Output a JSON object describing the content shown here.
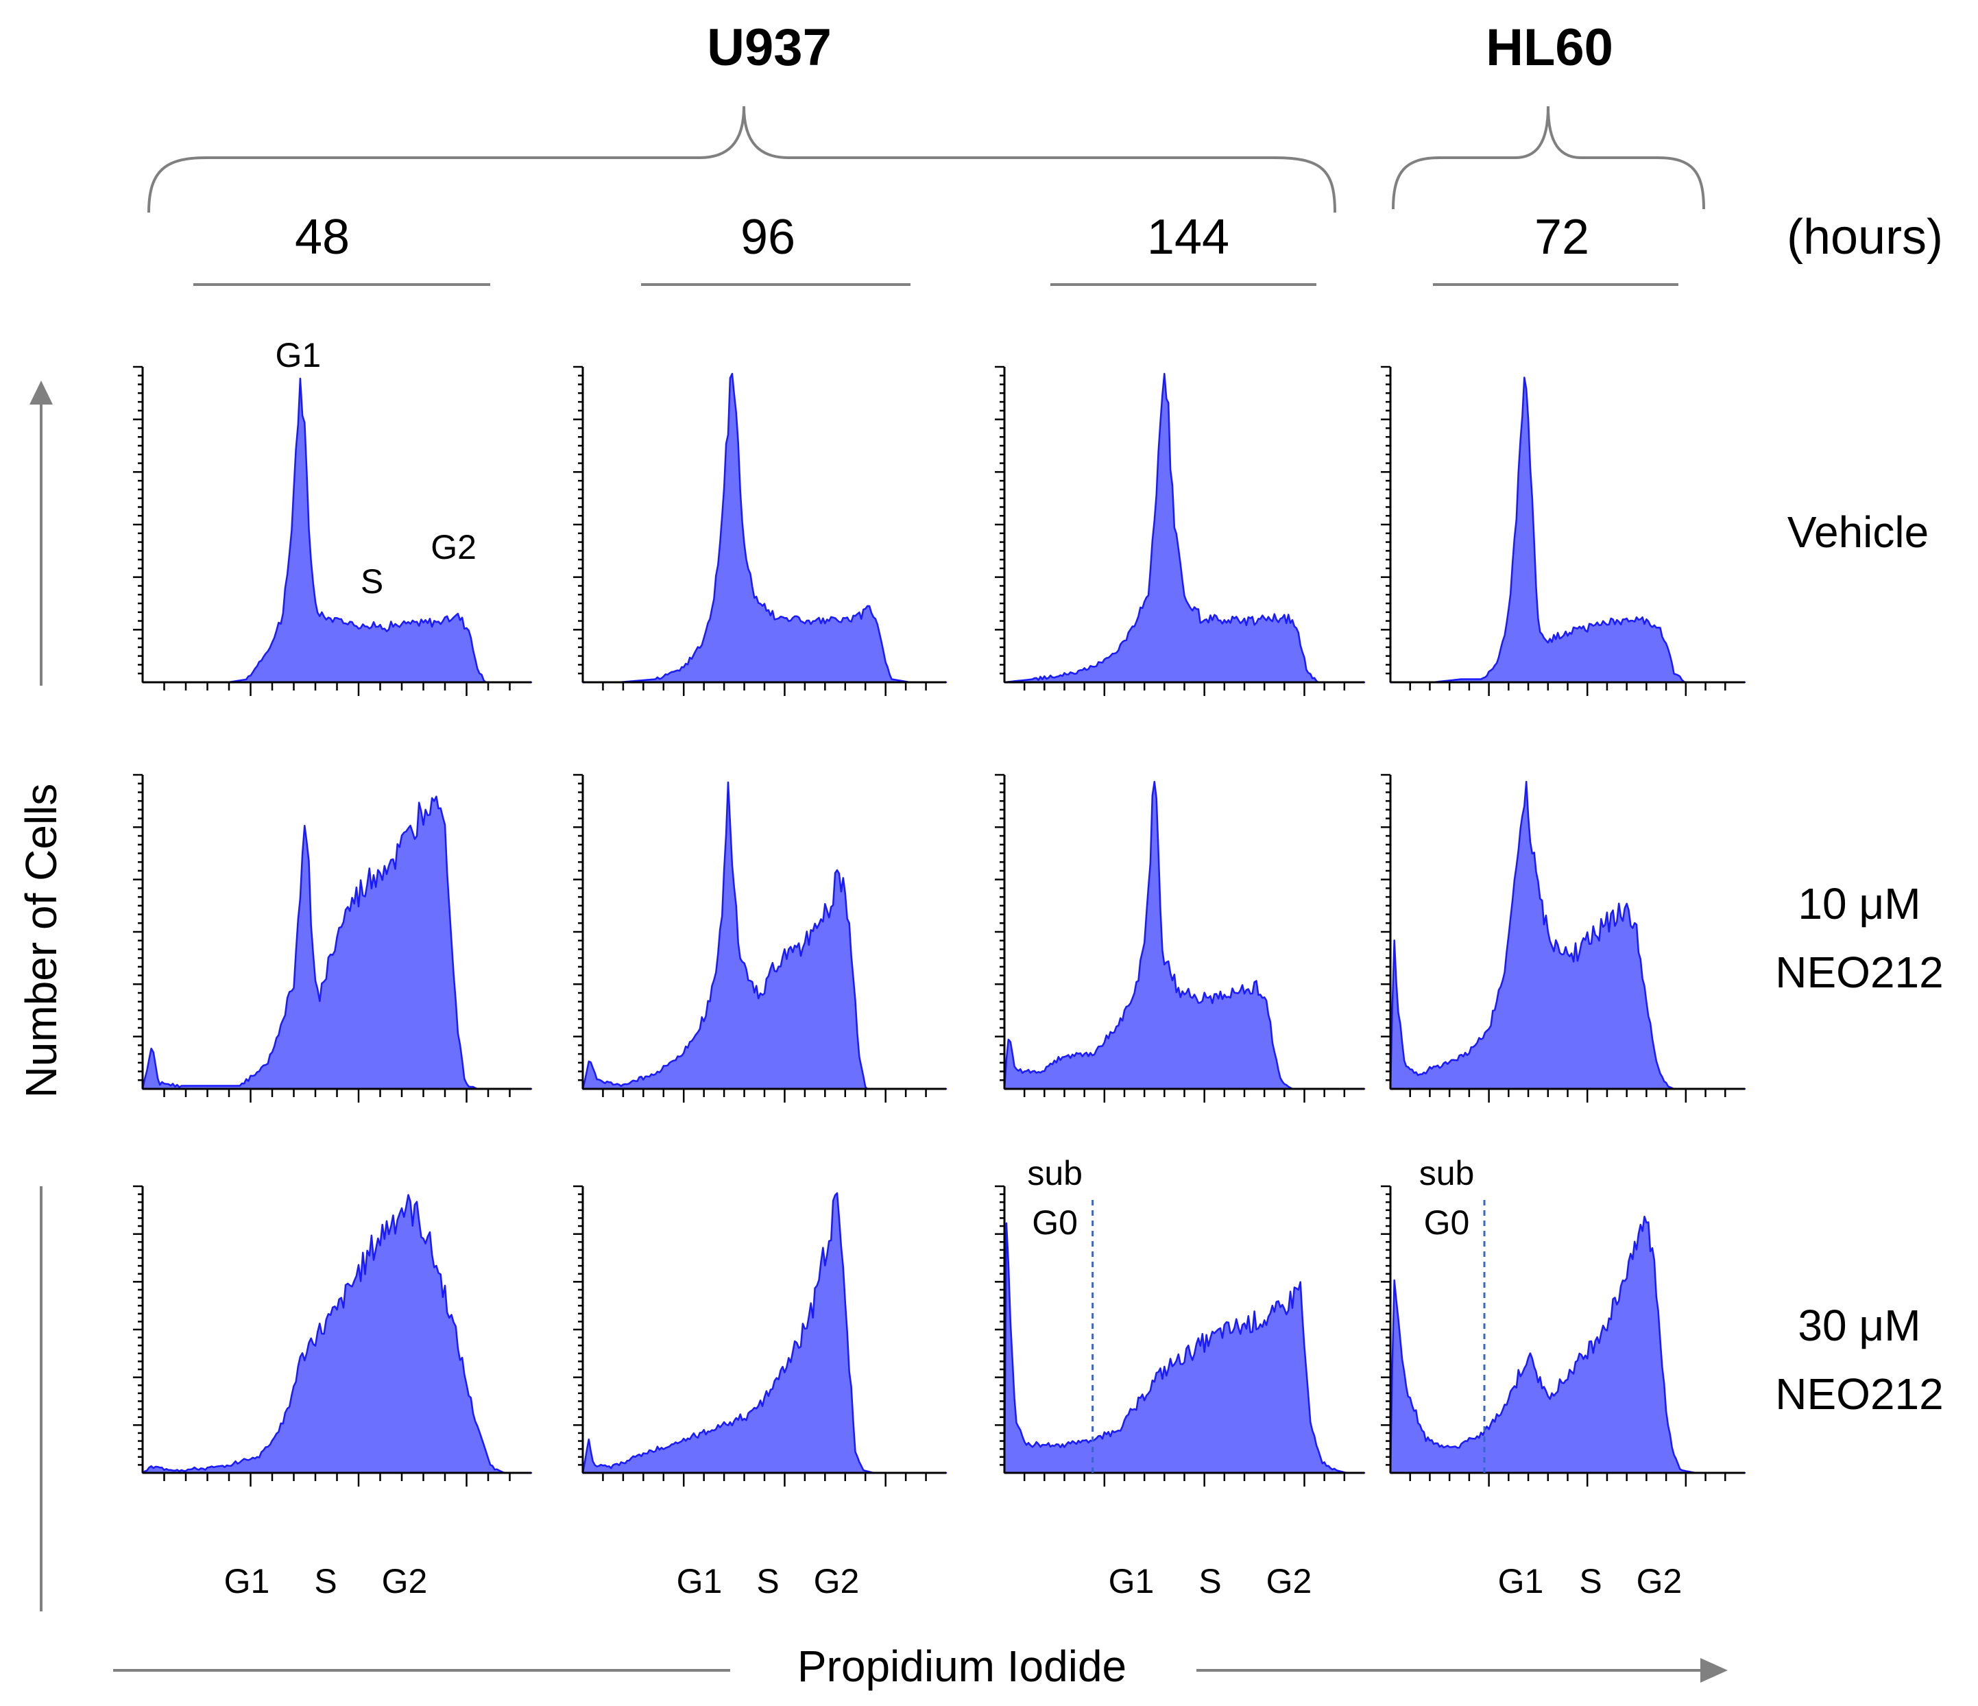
{
  "chart_data": {
    "type": "area",
    "description_note": "Grid of DNA-content (propidium iodide) histograms",
    "colors": {
      "fill": "#6b70ff",
      "stroke": "#1a1aff",
      "gate": "#3a66cc"
    },
    "cell_lines": [
      {
        "name": "U937",
        "spans_columns": [
          0,
          1,
          2
        ]
      },
      {
        "name": "HL60",
        "spans_columns": [
          3
        ]
      }
    ],
    "time_unit": "(hours)",
    "columns": [
      {
        "time": "48",
        "cell_line": "U937"
      },
      {
        "time": "96",
        "cell_line": "U937"
      },
      {
        "time": "144",
        "cell_line": "U937"
      },
      {
        "time": "72",
        "cell_line": "HL60"
      }
    ],
    "rows": [
      {
        "label_lines": [
          "Vehicle"
        ]
      },
      {
        "label_lines": [
          "10 μM",
          "NEO212"
        ]
      },
      {
        "label_lines": [
          "30 μM",
          "NEO212"
        ]
      }
    ],
    "y_axis_title": "Number of Cells",
    "x_axis_title": "Propidium Iodide",
    "peak_annotations": {
      "g1": "G1",
      "s": "S",
      "g2": "G2"
    },
    "bottom_phase_labels": [
      "G1",
      "S",
      "G2"
    ],
    "subg0_label_lines": [
      "sub",
      "G0"
    ],
    "x_range": [
      0,
      1
    ],
    "panels": [
      {
        "row": 0,
        "col": 0,
        "annotate": true,
        "profile": [
          [
            0,
            0
          ],
          [
            0.22,
            0
          ],
          [
            0.27,
            0.01
          ],
          [
            0.33,
            0.12
          ],
          [
            0.36,
            0.22
          ],
          [
            0.38,
            0.42
          ],
          [
            0.395,
            0.78
          ],
          [
            0.405,
            0.97
          ],
          [
            0.415,
            0.85
          ],
          [
            0.43,
            0.42
          ],
          [
            0.45,
            0.22
          ],
          [
            0.5,
            0.2
          ],
          [
            0.6,
            0.18
          ],
          [
            0.7,
            0.19
          ],
          [
            0.78,
            0.2
          ],
          [
            0.81,
            0.22
          ],
          [
            0.84,
            0.17
          ],
          [
            0.86,
            0.05
          ],
          [
            0.88,
            0
          ],
          [
            1,
            0
          ]
        ]
      },
      {
        "row": 0,
        "col": 1,
        "annotate": false,
        "profile": [
          [
            0,
            0
          ],
          [
            0.1,
            0
          ],
          [
            0.2,
            0.01
          ],
          [
            0.28,
            0.05
          ],
          [
            0.33,
            0.13
          ],
          [
            0.36,
            0.26
          ],
          [
            0.385,
            0.55
          ],
          [
            0.4,
            0.85
          ],
          [
            0.41,
            1.0
          ],
          [
            0.42,
            0.88
          ],
          [
            0.44,
            0.5
          ],
          [
            0.47,
            0.28
          ],
          [
            0.52,
            0.22
          ],
          [
            0.6,
            0.2
          ],
          [
            0.7,
            0.2
          ],
          [
            0.76,
            0.21
          ],
          [
            0.79,
            0.24
          ],
          [
            0.81,
            0.2
          ],
          [
            0.83,
            0.08
          ],
          [
            0.85,
            0.01
          ],
          [
            0.9,
            0
          ],
          [
            1,
            0
          ]
        ]
      },
      {
        "row": 0,
        "col": 2,
        "annotate": false,
        "profile": [
          [
            0,
            0
          ],
          [
            0.08,
            0.01
          ],
          [
            0.2,
            0.03
          ],
          [
            0.28,
            0.07
          ],
          [
            0.33,
            0.13
          ],
          [
            0.37,
            0.2
          ],
          [
            0.4,
            0.3
          ],
          [
            0.42,
            0.55
          ],
          [
            0.435,
            0.85
          ],
          [
            0.445,
            0.99
          ],
          [
            0.455,
            0.87
          ],
          [
            0.47,
            0.52
          ],
          [
            0.5,
            0.28
          ],
          [
            0.55,
            0.2
          ],
          [
            0.65,
            0.2
          ],
          [
            0.75,
            0.21
          ],
          [
            0.8,
            0.2
          ],
          [
            0.82,
            0.14
          ],
          [
            0.84,
            0.04
          ],
          [
            0.87,
            0
          ],
          [
            1,
            0
          ]
        ]
      },
      {
        "row": 0,
        "col": 3,
        "annotate": false,
        "profile": [
          [
            0,
            0
          ],
          [
            0.12,
            0
          ],
          [
            0.2,
            0.01
          ],
          [
            0.26,
            0.01
          ],
          [
            0.3,
            0.06
          ],
          [
            0.32,
            0.15
          ],
          [
            0.34,
            0.28
          ],
          [
            0.355,
            0.55
          ],
          [
            0.37,
            0.9
          ],
          [
            0.38,
            1.0
          ],
          [
            0.39,
            0.88
          ],
          [
            0.405,
            0.45
          ],
          [
            0.42,
            0.15
          ],
          [
            0.45,
            0.14
          ],
          [
            0.55,
            0.18
          ],
          [
            0.65,
            0.2
          ],
          [
            0.72,
            0.2
          ],
          [
            0.75,
            0.19
          ],
          [
            0.78,
            0.12
          ],
          [
            0.8,
            0.03
          ],
          [
            0.83,
            0
          ],
          [
            1,
            0
          ]
        ]
      },
      {
        "row": 1,
        "col": 0,
        "annotate": false,
        "profile": [
          [
            0,
            0
          ],
          [
            0.025,
            0.14
          ],
          [
            0.04,
            0.02
          ],
          [
            0.1,
            0.01
          ],
          [
            0.25,
            0.01
          ],
          [
            0.32,
            0.08
          ],
          [
            0.36,
            0.22
          ],
          [
            0.39,
            0.36
          ],
          [
            0.405,
            0.6
          ],
          [
            0.415,
            0.9
          ],
          [
            0.43,
            0.66
          ],
          [
            0.44,
            0.4
          ],
          [
            0.455,
            0.3
          ],
          [
            0.48,
            0.41
          ],
          [
            0.52,
            0.56
          ],
          [
            0.57,
            0.65
          ],
          [
            0.61,
            0.71
          ],
          [
            0.65,
            0.74
          ],
          [
            0.69,
            0.82
          ],
          [
            0.72,
            0.9
          ],
          [
            0.75,
            0.98
          ],
          [
            0.77,
            0.96
          ],
          [
            0.79,
            0.6
          ],
          [
            0.81,
            0.2
          ],
          [
            0.83,
            0.02
          ],
          [
            0.86,
            0
          ],
          [
            1,
            0
          ]
        ]
      },
      {
        "row": 1,
        "col": 1,
        "annotate": false,
        "profile": [
          [
            0,
            0
          ],
          [
            0.02,
            0.1
          ],
          [
            0.04,
            0.03
          ],
          [
            0.1,
            0.01
          ],
          [
            0.2,
            0.05
          ],
          [
            0.28,
            0.12
          ],
          [
            0.33,
            0.22
          ],
          [
            0.37,
            0.38
          ],
          [
            0.39,
            0.7
          ],
          [
            0.4,
            0.95
          ],
          [
            0.415,
            0.72
          ],
          [
            0.43,
            0.45
          ],
          [
            0.46,
            0.36
          ],
          [
            0.49,
            0.3
          ],
          [
            0.52,
            0.4
          ],
          [
            0.58,
            0.44
          ],
          [
            0.63,
            0.5
          ],
          [
            0.68,
            0.6
          ],
          [
            0.7,
            0.7
          ],
          [
            0.72,
            0.66
          ],
          [
            0.74,
            0.45
          ],
          [
            0.76,
            0.1
          ],
          [
            0.78,
            0
          ],
          [
            1,
            0
          ]
        ]
      },
      {
        "row": 1,
        "col": 2,
        "annotate": false,
        "profile": [
          [
            0,
            0
          ],
          [
            0.01,
            0.18
          ],
          [
            0.03,
            0.06
          ],
          [
            0.1,
            0.05
          ],
          [
            0.15,
            0.1
          ],
          [
            0.25,
            0.12
          ],
          [
            0.3,
            0.18
          ],
          [
            0.35,
            0.28
          ],
          [
            0.38,
            0.4
          ],
          [
            0.4,
            0.65
          ],
          [
            0.41,
            0.9
          ],
          [
            0.42,
            1.0
          ],
          [
            0.43,
            0.7
          ],
          [
            0.44,
            0.45
          ],
          [
            0.48,
            0.32
          ],
          [
            0.55,
            0.3
          ],
          [
            0.62,
            0.3
          ],
          [
            0.68,
            0.32
          ],
          [
            0.71,
            0.33
          ],
          [
            0.73,
            0.27
          ],
          [
            0.75,
            0.12
          ],
          [
            0.77,
            0.02
          ],
          [
            0.8,
            0
          ],
          [
            1,
            0
          ]
        ]
      },
      {
        "row": 1,
        "col": 3,
        "annotate": false,
        "profile": [
          [
            0,
            0
          ],
          [
            0.01,
            0.5
          ],
          [
            0.02,
            0.28
          ],
          [
            0.04,
            0.08
          ],
          [
            0.08,
            0.05
          ],
          [
            0.15,
            0.08
          ],
          [
            0.22,
            0.12
          ],
          [
            0.28,
            0.2
          ],
          [
            0.32,
            0.38
          ],
          [
            0.35,
            0.65
          ],
          [
            0.37,
            0.88
          ],
          [
            0.38,
            0.98
          ],
          [
            0.39,
            0.9
          ],
          [
            0.42,
            0.62
          ],
          [
            0.46,
            0.45
          ],
          [
            0.52,
            0.44
          ],
          [
            0.57,
            0.5
          ],
          [
            0.62,
            0.54
          ],
          [
            0.66,
            0.58
          ],
          [
            0.69,
            0.54
          ],
          [
            0.72,
            0.3
          ],
          [
            0.75,
            0.08
          ],
          [
            0.78,
            0.01
          ],
          [
            0.8,
            0
          ],
          [
            1,
            0
          ]
        ]
      },
      {
        "row": 2,
        "col": 0,
        "annotate": false,
        "profile": [
          [
            0,
            0
          ],
          [
            0.02,
            0.02
          ],
          [
            0.1,
            0.01
          ],
          [
            0.2,
            0.02
          ],
          [
            0.3,
            0.06
          ],
          [
            0.35,
            0.15
          ],
          [
            0.38,
            0.25
          ],
          [
            0.4,
            0.38
          ],
          [
            0.44,
            0.48
          ],
          [
            0.5,
            0.58
          ],
          [
            0.55,
            0.7
          ],
          [
            0.6,
            0.82
          ],
          [
            0.64,
            0.9
          ],
          [
            0.67,
            0.95
          ],
          [
            0.7,
            0.93
          ],
          [
            0.73,
            0.85
          ],
          [
            0.76,
            0.72
          ],
          [
            0.79,
            0.58
          ],
          [
            0.82,
            0.4
          ],
          [
            0.85,
            0.22
          ],
          [
            0.88,
            0.08
          ],
          [
            0.9,
            0.02
          ],
          [
            0.93,
            0
          ],
          [
            1,
            0
          ]
        ]
      },
      {
        "row": 2,
        "col": 1,
        "annotate": false,
        "profile": [
          [
            0,
            0
          ],
          [
            0.015,
            0.12
          ],
          [
            0.03,
            0.03
          ],
          [
            0.08,
            0.02
          ],
          [
            0.15,
            0.06
          ],
          [
            0.25,
            0.1
          ],
          [
            0.35,
            0.15
          ],
          [
            0.45,
            0.2
          ],
          [
            0.5,
            0.26
          ],
          [
            0.53,
            0.32
          ],
          [
            0.56,
            0.4
          ],
          [
            0.6,
            0.48
          ],
          [
            0.63,
            0.58
          ],
          [
            0.66,
            0.75
          ],
          [
            0.69,
            0.92
          ],
          [
            0.7,
            0.96
          ],
          [
            0.71,
            0.85
          ],
          [
            0.73,
            0.45
          ],
          [
            0.75,
            0.08
          ],
          [
            0.77,
            0.01
          ],
          [
            0.8,
            0
          ],
          [
            1,
            0
          ]
        ]
      },
      {
        "row": 2,
        "col": 2,
        "annotate": false,
        "subg0_gate": 0.245,
        "profile": [
          [
            0,
            0
          ],
          [
            0.005,
            0.95
          ],
          [
            0.015,
            0.6
          ],
          [
            0.03,
            0.2
          ],
          [
            0.06,
            0.1
          ],
          [
            0.15,
            0.1
          ],
          [
            0.25,
            0.12
          ],
          [
            0.32,
            0.16
          ],
          [
            0.38,
            0.26
          ],
          [
            0.42,
            0.34
          ],
          [
            0.48,
            0.4
          ],
          [
            0.55,
            0.46
          ],
          [
            0.6,
            0.5
          ],
          [
            0.65,
            0.52
          ],
          [
            0.7,
            0.54
          ],
          [
            0.75,
            0.56
          ],
          [
            0.8,
            0.62
          ],
          [
            0.82,
            0.7
          ],
          [
            0.83,
            0.5
          ],
          [
            0.85,
            0.18
          ],
          [
            0.88,
            0.04
          ],
          [
            0.92,
            0.01
          ],
          [
            0.95,
            0
          ],
          [
            1,
            0
          ]
        ]
      },
      {
        "row": 2,
        "col": 3,
        "annotate": false,
        "subg0_gate": 0.265,
        "profile": [
          [
            0,
            0
          ],
          [
            0.01,
            0.72
          ],
          [
            0.02,
            0.55
          ],
          [
            0.05,
            0.28
          ],
          [
            0.1,
            0.12
          ],
          [
            0.15,
            0.09
          ],
          [
            0.2,
            0.1
          ],
          [
            0.26,
            0.14
          ],
          [
            0.3,
            0.2
          ],
          [
            0.33,
            0.26
          ],
          [
            0.36,
            0.34
          ],
          [
            0.38,
            0.4
          ],
          [
            0.39,
            0.42
          ],
          [
            0.41,
            0.36
          ],
          [
            0.44,
            0.28
          ],
          [
            0.47,
            0.3
          ],
          [
            0.52,
            0.38
          ],
          [
            0.57,
            0.46
          ],
          [
            0.62,
            0.56
          ],
          [
            0.66,
            0.7
          ],
          [
            0.69,
            0.85
          ],
          [
            0.72,
            0.9
          ],
          [
            0.74,
            0.8
          ],
          [
            0.76,
            0.5
          ],
          [
            0.78,
            0.2
          ],
          [
            0.8,
            0.06
          ],
          [
            0.82,
            0.01
          ],
          [
            0.86,
            0
          ],
          [
            1,
            0
          ]
        ]
      }
    ]
  }
}
